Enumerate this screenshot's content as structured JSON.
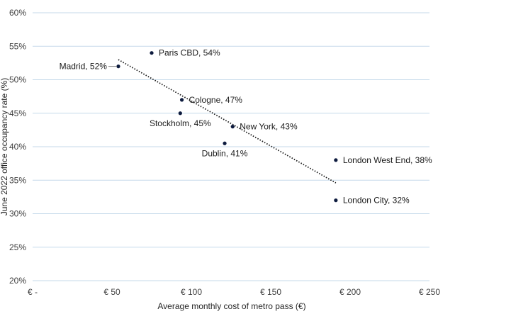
{
  "chart_data": {
    "type": "scatter",
    "title": "",
    "xlabel": "Average monthly cost of metro pass (€)",
    "ylabel": "June 2022 office occupancy rate (%)",
    "xlim": [
      0,
      250
    ],
    "ylim": [
      20,
      60
    ],
    "x_ticks": [
      {
        "value": 0,
        "label": "€ -"
      },
      {
        "value": 50,
        "label": "€ 50"
      },
      {
        "value": 100,
        "label": "€ 100"
      },
      {
        "value": 150,
        "label": "€ 150"
      },
      {
        "value": 200,
        "label": "€ 200"
      },
      {
        "value": 250,
        "label": "€ 250"
      }
    ],
    "y_ticks": [
      {
        "value": 20,
        "label": "20%"
      },
      {
        "value": 25,
        "label": "25%"
      },
      {
        "value": 30,
        "label": "30%"
      },
      {
        "value": 35,
        "label": "35%"
      },
      {
        "value": 40,
        "label": "40%"
      },
      {
        "value": 45,
        "label": "45%"
      },
      {
        "value": 50,
        "label": "50%"
      },
      {
        "value": 55,
        "label": "55%"
      },
      {
        "value": 60,
        "label": "60%"
      }
    ],
    "grid": "horizontal",
    "points": [
      {
        "label": "Madrid, 52%",
        "x": 54,
        "y": 52,
        "label_pos": "left"
      },
      {
        "label": "Paris CBD, 54%",
        "x": 75,
        "y": 54,
        "label_pos": "right"
      },
      {
        "label": "Cologne, 47%",
        "x": 94,
        "y": 47,
        "label_pos": "right"
      },
      {
        "label": "Stockholm, 45%",
        "x": 93,
        "y": 45,
        "label_pos": "below"
      },
      {
        "label": "New York, 43%",
        "x": 126,
        "y": 43,
        "label_pos": "right"
      },
      {
        "label": "Dublin, 41%",
        "x": 121,
        "y": 40.5,
        "label_pos": "below"
      },
      {
        "label": "London West End, 38%",
        "x": 191,
        "y": 38,
        "label_pos": "right"
      },
      {
        "label": "London City, 32%",
        "x": 191,
        "y": 32,
        "label_pos": "right"
      }
    ],
    "trendline": {
      "style": "dotted",
      "from": {
        "x": 54,
        "y": 53
      },
      "to": {
        "x": 191,
        "y": 34.6
      }
    },
    "colors": {
      "point": "#0d1b3e",
      "grid": "#c5d9ea",
      "trendline": "#1a1a1a"
    }
  }
}
